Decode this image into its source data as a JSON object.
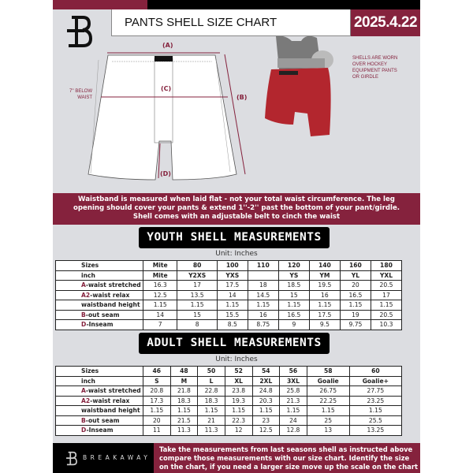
{
  "header": {
    "title": "PANTS SHELL SIZE CHART",
    "date": "2025.4.22",
    "logo": "B"
  },
  "colors": {
    "accent": "#85223d",
    "background": "#dcdde1",
    "pill": "#000000",
    "shell": "#b3262e"
  },
  "diagram": {
    "label_a": "(A)",
    "label_b": "(B)",
    "label_c": "(C)",
    "label_d": "(D)",
    "c_note_line1": "7'' BELOW",
    "c_note_line2": "WAIST",
    "shell_note": [
      "SHELLS ARE WORN",
      "OVER HOCKEY",
      "EQUIPMENT PANTS",
      "OR GIRDLE"
    ]
  },
  "info_band": [
    "Waistband is measured when laid flat - not your total waist circumference. The leg",
    "opening should cover your pants & extend 1''-2'' past the bottom of your pant/girdle.",
    "Shell comes with an adjustable belt to cinch the waist"
  ],
  "youth": {
    "title": "YOUTH SHELL MEASUREMENTS",
    "unit": "Unit: Inches",
    "rows": [
      {
        "pre": "",
        "label": "Sizes",
        "cells": [
          "Mite",
          "80",
          "100",
          "110",
          "120",
          "140",
          "160",
          "180"
        ]
      },
      {
        "pre": "",
        "label": "inch",
        "cells": [
          "Mite",
          "Y2XS",
          "YXS",
          "",
          "YS",
          "YM",
          "YL",
          "YXL"
        ]
      },
      {
        "pre": "A",
        "label": "-waist stretched",
        "cells": [
          "16.3",
          "17",
          "17.5",
          "18",
          "18.5",
          "19.5",
          "20",
          "20.5"
        ]
      },
      {
        "pre": "A2",
        "label": "-waist relax",
        "cells": [
          "12.5",
          "13.5",
          "14",
          "14.5",
          "15",
          "16",
          "16.5",
          "17"
        ]
      },
      {
        "pre": "",
        "label": "waistband height",
        "cells": [
          "1.15",
          "1.15",
          "1.15",
          "1.15",
          "1.15",
          "1.15",
          "1.15",
          "1.15"
        ]
      },
      {
        "pre": "B",
        "label": "-out seam",
        "cells": [
          "14",
          "15",
          "15.5",
          "16",
          "16.5",
          "17.5",
          "19",
          "20.5"
        ]
      },
      {
        "pre": "D",
        "label": "-Inseam",
        "cells": [
          "7",
          "8",
          "8.5",
          "8.75",
          "9",
          "9.5",
          "9.75",
          "10.3"
        ]
      }
    ]
  },
  "adult": {
    "title": "ADULT SHELL MEASUREMENTS",
    "unit": "Unit: Inches",
    "rows": [
      {
        "pre": "",
        "label": "Sizes",
        "cells": [
          "46",
          "48",
          "50",
          "52",
          "54",
          "56",
          "58",
          "60"
        ]
      },
      {
        "pre": "",
        "label": "inch",
        "cells": [
          "S",
          "M",
          "L",
          "XL",
          "2XL",
          "3XL",
          "Goalie",
          "Goalie+"
        ]
      },
      {
        "pre": "A",
        "label": "-waist stretched",
        "cells": [
          "20.8",
          "21.8",
          "22.8",
          "23.8",
          "24.8",
          "25.8",
          "26.75",
          "27.75"
        ]
      },
      {
        "pre": "A2",
        "label": "-waist relax",
        "cells": [
          "17.3",
          "18.3",
          "18.3",
          "19.3",
          "20.3",
          "21.3",
          "22.25",
          "23.25"
        ]
      },
      {
        "pre": "",
        "label": "waistband height",
        "cells": [
          "1.15",
          "1.15",
          "1.15",
          "1.15",
          "1.15",
          "1.15",
          "1.15",
          "1.15"
        ]
      },
      {
        "pre": "B",
        "label": "-out seam",
        "cells": [
          "20",
          "21.5",
          "21",
          "22.3",
          "23",
          "24",
          "25",
          "25.5"
        ]
      },
      {
        "pre": "D",
        "label": "-Inseam",
        "cells": [
          "11",
          "11.3",
          "11.3",
          "12",
          "12.5",
          "12.8",
          "13",
          "13.25"
        ]
      }
    ]
  },
  "footer": {
    "brand": "BREAKAWAY",
    "text": [
      "Take the measurements from last seasons shell as instructed above",
      "compare those measurements  with our size chart. Identify the size",
      "on the chart, if you need a larger size move up the scale on the chart"
    ]
  }
}
